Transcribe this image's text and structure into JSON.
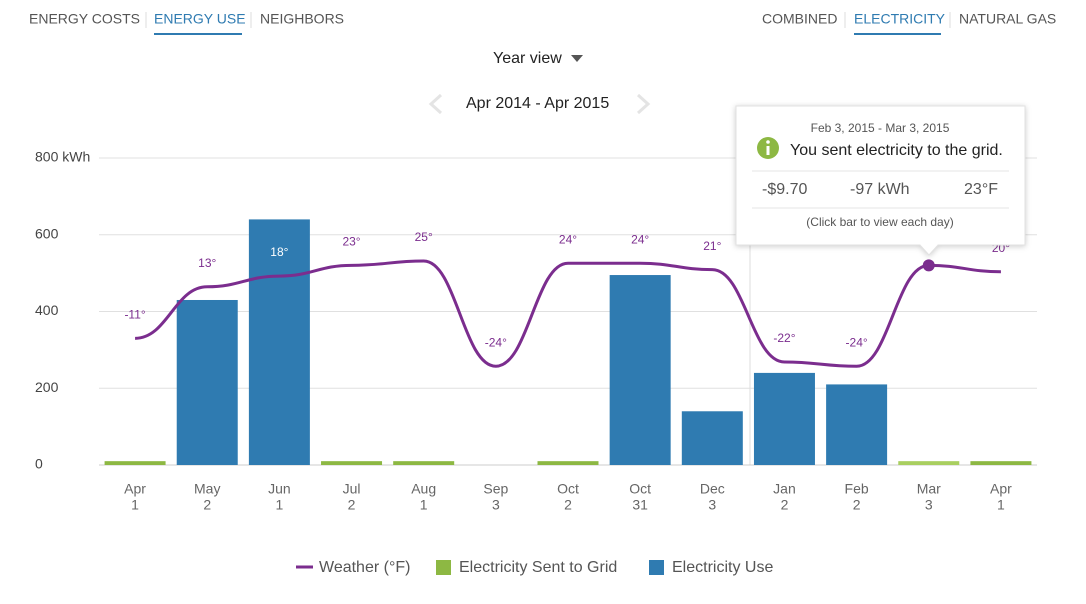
{
  "nav": {
    "left": [
      "ENERGY COSTS",
      "ENERGY USE",
      "NEIGHBORS"
    ],
    "right": [
      "COMBINED",
      "ELECTRICITY",
      "NATURAL GAS"
    ]
  },
  "view_selector": "Year view",
  "date_range": "Apr 2014 - Apr 2015",
  "tooltip": {
    "date_range": "Feb 3, 2015 - Mar 3, 2015",
    "message": "You sent electricity to the grid.",
    "cost": "-$9.70",
    "energy": "-97 kWh",
    "temperature": "23°F",
    "hint": "(Click bar to view each day)"
  },
  "chart_data": {
    "type": "bar",
    "categories": [
      [
        "Apr",
        "1"
      ],
      [
        "May",
        "2"
      ],
      [
        "Jun",
        "1"
      ],
      [
        "Jul",
        "2"
      ],
      [
        "Aug",
        "1"
      ],
      [
        "Sep",
        "3"
      ],
      [
        "Oct",
        "2"
      ],
      [
        "Oct",
        "31"
      ],
      [
        "Dec",
        "3"
      ],
      [
        "Jan",
        "2"
      ],
      [
        "Feb",
        "2"
      ],
      [
        "Mar",
        "3"
      ],
      [
        "Apr",
        "1"
      ]
    ],
    "series": [
      {
        "name": "Weather (°F)",
        "type": "line",
        "axis": "y2",
        "color": "#7b2d8e",
        "values": [
          -11,
          13,
          18,
          23,
          25,
          -24,
          24,
          24,
          21,
          -22,
          -24,
          23,
          20
        ],
        "value_labels": [
          "-11°",
          "13°",
          "18°",
          "23°",
          "25°",
          "-24°",
          "24°",
          "24°",
          "21°",
          "-22°",
          "-24°",
          "23°",
          "20°"
        ]
      },
      {
        "name": "Electricity Sent to Grid",
        "color": "#8db843",
        "colors": [
          "#8db843",
          "#8db843",
          "#8db843",
          "#8db843",
          "#8db843",
          "#8db843",
          "#8db843",
          "#8db843",
          "#8db843",
          "#8db843",
          "#8db843",
          "#a9cf60",
          "#8db843"
        ],
        "values": [
          10,
          null,
          null,
          10,
          10,
          null,
          10,
          null,
          null,
          null,
          null,
          10,
          10
        ]
      },
      {
        "name": "Electricity Use",
        "color": "#2f7bb1",
        "values": [
          null,
          430,
          640,
          null,
          null,
          null,
          null,
          495,
          140,
          240,
          210,
          null,
          null
        ]
      }
    ],
    "ylim": [
      0,
      800
    ],
    "yticks": [
      0,
      200,
      400,
      600,
      {
        "value": 800,
        "label": "800 kWh"
      }
    ],
    "y2lim": [
      -70,
      73
    ],
    "grid": true,
    "legend": "bottom"
  }
}
